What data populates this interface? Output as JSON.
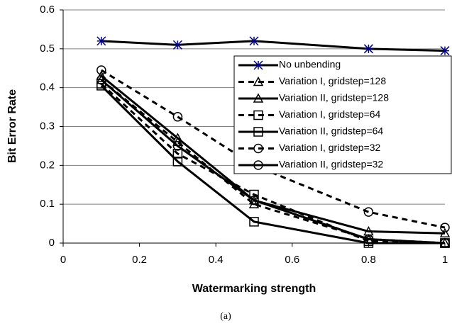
{
  "chart_data": {
    "type": "line",
    "x_label": "Watermarking strength",
    "y_label": "Bit Error Rate",
    "caption": "(a)",
    "x": [
      0.1,
      0.3,
      0.5,
      0.8,
      1
    ],
    "xlim": [
      0,
      1
    ],
    "xticks": [
      0,
      0.2,
      0.4,
      0.6,
      0.8,
      1
    ],
    "ylim": [
      0,
      0.6
    ],
    "yticks": [
      0,
      0.1,
      0.2,
      0.3,
      0.4,
      0.5,
      0.6
    ],
    "grid": true,
    "series": [
      {
        "name": "No unbending",
        "color": "#000000",
        "marker_color": "#000080",
        "marker": "asterisk",
        "dashed": false,
        "values": [
          0.52,
          0.51,
          0.52,
          0.5,
          0.495
        ]
      },
      {
        "name": "Variation I, gridstep=128",
        "color": "#000000",
        "marker_color": "#000000",
        "marker": "triangle",
        "dashed": true,
        "values": [
          0.42,
          0.26,
          0.1,
          0.01,
          0
        ]
      },
      {
        "name": "Variation II, gridstep=128",
        "color": "#000000",
        "marker_color": "#000000",
        "marker": "triangle",
        "dashed": false,
        "values": [
          0.43,
          0.27,
          0.11,
          0.03,
          0.025
        ]
      },
      {
        "name": "Variation I, gridstep=64",
        "color": "#000000",
        "marker_color": "#000000",
        "marker": "square",
        "dashed": true,
        "values": [
          0.41,
          0.23,
          0.125,
          0.005,
          0
        ]
      },
      {
        "name": "Variation II, gridstep=64",
        "color": "#000000",
        "marker_color": "#000000",
        "marker": "square",
        "dashed": false,
        "values": [
          0.405,
          0.21,
          0.055,
          0,
          0
        ]
      },
      {
        "name": "Variation I, gridstep=32",
        "color": "#000000",
        "marker_color": "#000000",
        "marker": "circle",
        "dashed": true,
        "values": [
          0.445,
          0.325,
          0.2,
          0.08,
          0.04
        ]
      },
      {
        "name": "Variation II, gridstep=32",
        "color": "#000000",
        "marker_color": "#000000",
        "marker": "circle",
        "dashed": false,
        "values": [
          0.42,
          0.25,
          0.11,
          0.01,
          0
        ]
      }
    ]
  }
}
